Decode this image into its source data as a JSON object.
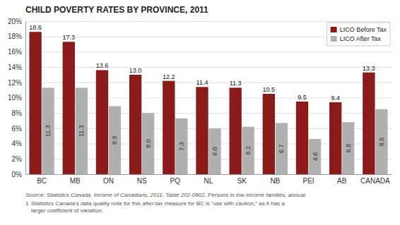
{
  "chart_data": {
    "type": "bar",
    "title": "CHILD POVERTY RATES BY PROVINCE, 2011",
    "categories": [
      "BC",
      "MB",
      "ON",
      "NS",
      "PQ",
      "NL",
      "SK",
      "NB",
      "PEI",
      "AB",
      "CANADA"
    ],
    "series": [
      {
        "name": "LICO Before Tax",
        "color": "#8B1A1A",
        "values": [
          18.6,
          17.3,
          13.6,
          13.0,
          12.2,
          11.4,
          11.3,
          10.5,
          9.5,
          9.4,
          13.3
        ],
        "value_labels": [
          "18.6",
          "17.3",
          "13.6",
          "13.0",
          "12.2",
          "11.4",
          "11.3",
          "10.5",
          "9.5",
          "9.4",
          "13.3"
        ]
      },
      {
        "name": "LICO After Tax",
        "color": "#B0B0B0",
        "values": [
          11.3,
          11.3,
          8.9,
          8.0,
          7.3,
          6.0,
          6.2,
          6.7,
          4.6,
          6.8,
          8.5
        ],
        "value_labels": [
          "11.3",
          "11.3",
          "8.9",
          "8.0",
          "7.3",
          "6.0",
          "6.2",
          "6.7",
          "4.6",
          "6.8",
          "8.5"
        ]
      }
    ],
    "ylim": [
      0,
      20
    ],
    "yticks": [
      {
        "value": 0,
        "label": "0%"
      },
      {
        "value": 2,
        "label": "2%"
      },
      {
        "value": 4,
        "label": "4%"
      },
      {
        "value": 6,
        "label": "6%"
      },
      {
        "value": 8,
        "label": "8%"
      },
      {
        "value": 10,
        "label": "10%"
      },
      {
        "value": 12,
        "label": "12%"
      },
      {
        "value": 14,
        "label": "14%"
      },
      {
        "value": 16,
        "label": "16%"
      },
      {
        "value": 18,
        "label": "18%"
      },
      {
        "value": 20,
        "label": "20%"
      }
    ],
    "grid": true,
    "legend": "upper right",
    "data_labels": true,
    "source": "Source: Statistics Canada, Income of Canadians, 2011, Table 202-0802, Persons in low income families, annual.",
    "footnote": {
      "label": "1",
      "text": "Statistics Canada's data quality note for this after-tax measure for BC is “use with caution,” as it has a\nlarger coefficient of variation."
    }
  }
}
